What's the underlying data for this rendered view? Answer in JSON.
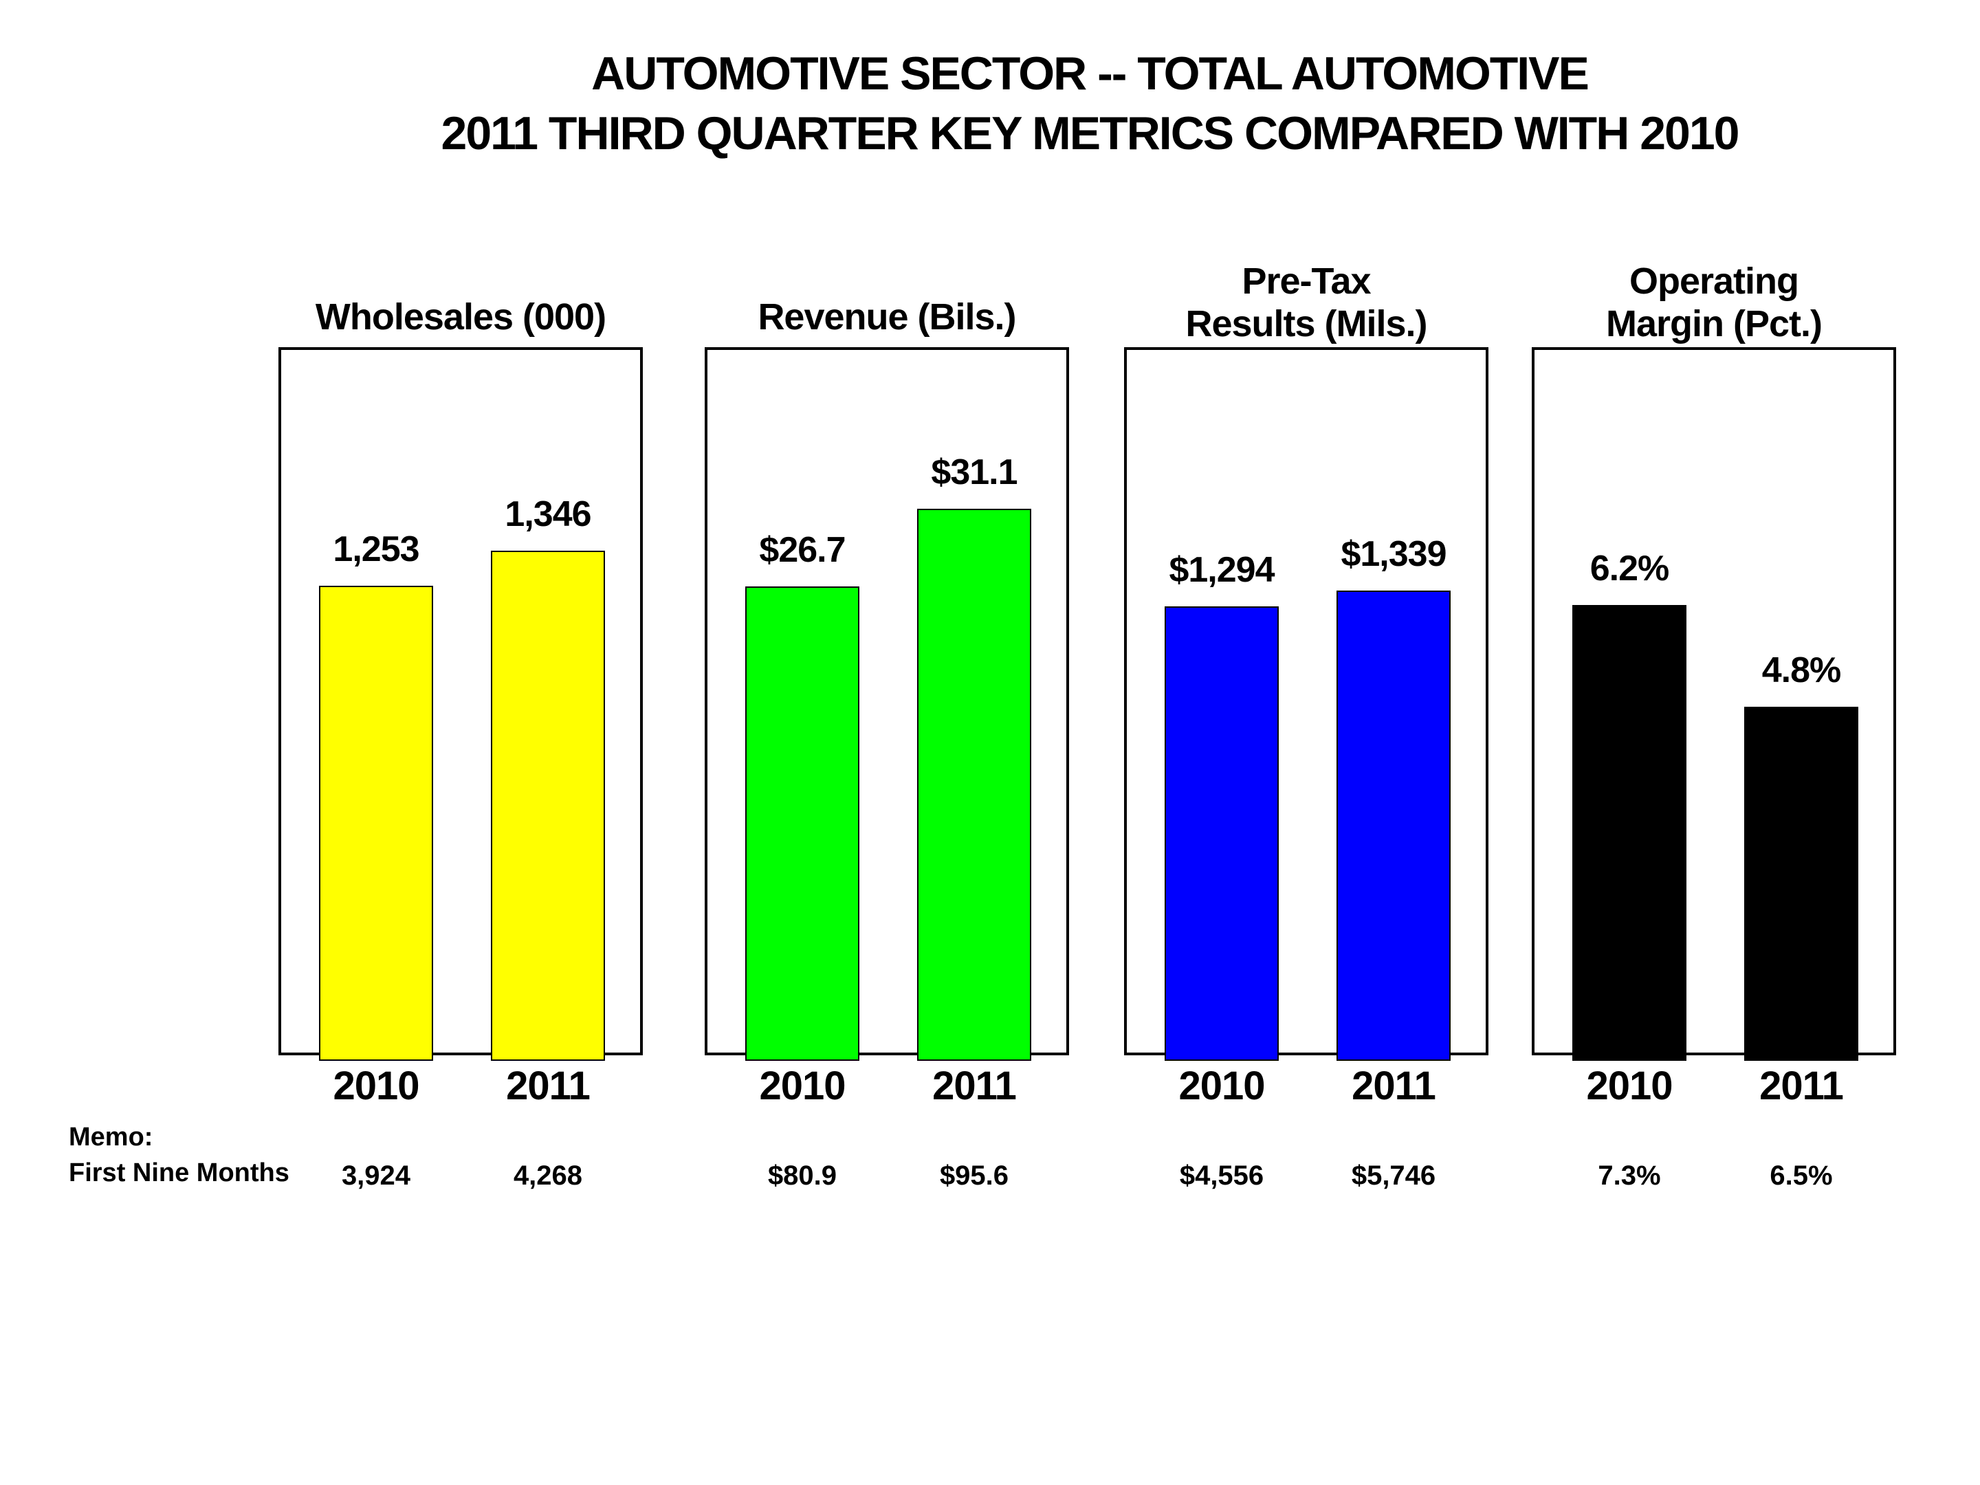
{
  "title": {
    "line1": "AUTOMOTIVE SECTOR -- TOTAL AUTOMOTIVE",
    "line2": "2011 THIRD QUARTER KEY METRICS COMPARED WITH 2010"
  },
  "memo": {
    "line1": "Memo:",
    "line2": "First Nine Months"
  },
  "chart_data": [
    {
      "type": "bar",
      "title": "Wholesales (000)",
      "title_lines": [
        "Wholesales (000)"
      ],
      "categories": [
        "2010",
        "2011"
      ],
      "values": [
        1253,
        1346
      ],
      "data_labels": [
        "1,253",
        "1,346"
      ],
      "memo_first_nine_months": [
        "3,924",
        "4,268"
      ],
      "bar_color": "#FFFF00",
      "xlabel": "",
      "ylabel": "",
      "ylim": [
        0,
        1890
      ],
      "grid": false,
      "legend": false
    },
    {
      "type": "bar",
      "title": "Revenue (Bils.)",
      "title_lines": [
        "Revenue (Bils.)"
      ],
      "categories": [
        "2010",
        "2011"
      ],
      "values": [
        26.7,
        31.1
      ],
      "data_labels": [
        "$26.7",
        "$31.1"
      ],
      "memo_first_nine_months": [
        "$80.9",
        "$95.6"
      ],
      "bar_color": "#00FF00",
      "xlabel": "",
      "ylabel": "",
      "ylim": [
        0,
        40.3
      ],
      "grid": false,
      "legend": false
    },
    {
      "type": "bar",
      "title": "Pre-Tax Results (Mils.)",
      "title_lines": [
        "Pre-Tax",
        "Results (Mils.)"
      ],
      "categories": [
        "2010",
        "2011"
      ],
      "values": [
        1294,
        1339
      ],
      "data_labels": [
        "$1,294",
        "$1,339"
      ],
      "memo_first_nine_months": [
        "$4,556",
        "$5,746"
      ],
      "bar_color": "#0000FF",
      "xlabel": "",
      "ylabel": "",
      "ylim": [
        0,
        2040
      ],
      "grid": false,
      "legend": false
    },
    {
      "type": "bar",
      "title": "Operating Margin (Pct.)",
      "title_lines": [
        "Operating",
        "Margin (Pct.)"
      ],
      "categories": [
        "2010",
        "2011"
      ],
      "values": [
        6.2,
        4.8
      ],
      "data_labels": [
        "6.2%",
        "4.8%"
      ],
      "memo_first_nine_months": [
        "7.3%",
        "6.5%"
      ],
      "bar_color": "#000000",
      "xlabel": "",
      "ylabel": "",
      "ylim": [
        0,
        9.75
      ],
      "grid": false,
      "legend": false
    }
  ]
}
